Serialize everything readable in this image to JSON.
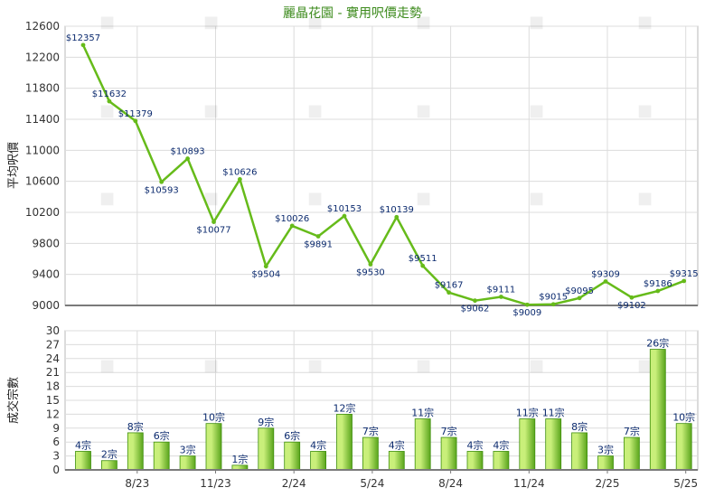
{
  "title": "麗晶花園 - 實用呎價走勢",
  "colors": {
    "line": "#66bb1a",
    "bar_light": "#c9ef7a",
    "bar_dark": "#5aa51c",
    "title": "#3d8b1d",
    "label": "#0b2a6e"
  },
  "chart_data": [
    {
      "type": "line",
      "title": "麗晶花園 - 實用呎價走勢",
      "ylabel": "平均呎價",
      "ylim": [
        9000,
        12600
      ],
      "yticks": [
        9000,
        9400,
        9800,
        10200,
        10600,
        11000,
        11400,
        11800,
        12200,
        12600
      ],
      "xtick_labels": [
        "8/23",
        "11/23",
        "2/24",
        "5/24",
        "8/24",
        "11/24",
        "2/25",
        "5/25"
      ],
      "grid": true,
      "series": [
        {
          "values": [
            12357,
            11632,
            11379,
            10593,
            10893,
            10077,
            10626,
            9504,
            10026,
            9891,
            10153,
            9530,
            10139,
            9511,
            9167,
            9062,
            9111,
            9009,
            9015,
            9095,
            9309,
            9102,
            9186,
            9315
          ],
          "labels": [
            "$12357",
            "$11632",
            "$11379",
            "$10593",
            "$10893",
            "$10077",
            "$10626",
            "$9504",
            "$10026",
            "$9891",
            "$10153",
            "$9530",
            "$10139",
            "$9511",
            "$9167",
            "$9062",
            "$9111",
            "$9009",
            "$9015",
            "$9095",
            "$9309",
            "$9102",
            "$9186",
            "$9315"
          ]
        }
      ]
    },
    {
      "type": "bar",
      "ylabel": "成交宗數",
      "ylim": [
        0,
        30
      ],
      "yticks": [
        0,
        3,
        6,
        9,
        12,
        15,
        18,
        21,
        24,
        27,
        30
      ],
      "xtick_labels": [
        "8/23",
        "11/23",
        "2/24",
        "5/24",
        "8/24",
        "11/24",
        "2/25",
        "5/25"
      ],
      "grid": true,
      "series": [
        {
          "values": [
            4,
            2,
            8,
            6,
            3,
            10,
            1,
            9,
            6,
            4,
            12,
            7,
            4,
            11,
            7,
            4,
            4,
            11,
            11,
            8,
            3,
            7,
            26,
            10
          ],
          "labels": [
            "4宗",
            "2宗",
            "8宗",
            "6宗",
            "3宗",
            "10宗",
            "1宗",
            "9宗",
            "6宗",
            "4宗",
            "12宗",
            "7宗",
            "4宗",
            "11宗",
            "7宗",
            "4宗",
            "4宗",
            "11宗",
            "11宗",
            "8宗",
            "3宗",
            "7宗",
            "26宗",
            "10宗"
          ]
        }
      ]
    }
  ]
}
